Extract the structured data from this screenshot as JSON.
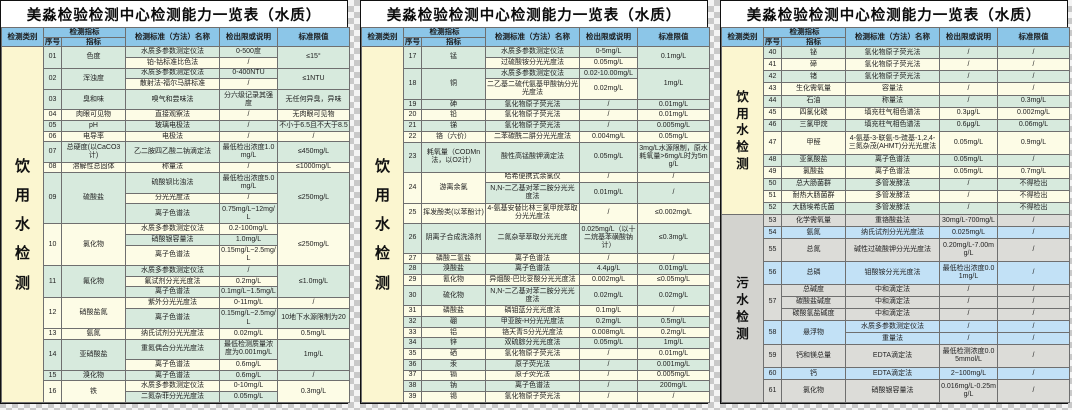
{
  "title": "美淼检验检测中心检测能力一览表（水质）",
  "header": {
    "category": "检测类别",
    "indicator_group": "检测指标",
    "seq": "序号",
    "indicator": "指标",
    "method": "检测标准（方法）名称",
    "detection": "检出限或说明",
    "limit": "标准限值"
  },
  "colors": {
    "header_bg": "#8cc6e8",
    "drink_row_a": "#d7eadd",
    "drink_row_b": "#fdfce6",
    "drink_category_bg": "#fbf6d0",
    "sewage_row_a": "#dcdcd8",
    "sewage_row_b": "#c2e1f6",
    "sewage_category_bg": "#d3d3cf",
    "grid_line": "#6f6f6f"
  },
  "panels": [
    {
      "sections": [
        {
          "category": "饮用水检测",
          "palette": "drink",
          "rows": [
            {
              "seq": "01",
              "ind": "色度",
              "limit": "≤15°",
              "lines": [
                {
                  "m": "水质多参数测定仪法",
                  "d": "0-500度"
                },
                {
                  "m": "铂-钴标准比色法",
                  "d": "/"
                }
              ]
            },
            {
              "seq": "02",
              "ind": "浑浊度",
              "limit": "≤1NTU",
              "lines": [
                {
                  "m": "水质多参数测定仪法",
                  "d": "0-400NTU"
                },
                {
                  "m": "散射法-福尔马肼标准",
                  "d": "/"
                }
              ]
            },
            {
              "seq": "03",
              "ind": "臭和味",
              "limit": "无任何异臭，异味",
              "lines": [
                {
                  "m": "嗅气和尝味法",
                  "d": "分六级记录其强度"
                }
              ]
            },
            {
              "seq": "04",
              "ind": "肉眼可见物",
              "limit": "无肉眼可见物",
              "lines": [
                {
                  "m": "直接观察法",
                  "d": "/"
                }
              ]
            },
            {
              "seq": "05",
              "ind": "pH",
              "limit": "不小于6.5且不大于8.5",
              "lines": [
                {
                  "m": "玻璃电极法",
                  "d": "/"
                }
              ]
            },
            {
              "seq": "06",
              "ind": "电导率",
              "limit": "/",
              "lines": [
                {
                  "m": "电极法",
                  "d": "/"
                }
              ]
            },
            {
              "seq": "07",
              "ind": "总硬度(以CaCO3计)",
              "limit": "≤450mg/L",
              "lines": [
                {
                  "m": "乙二胺四乙酸二钠滴定法",
                  "d": "最低检出浓度1.0mg/L"
                }
              ]
            },
            {
              "seq": "08",
              "ind": "溶解性总固体",
              "limit": "≤1000mg/L",
              "lines": [
                {
                  "m": "称量法",
                  "d": "/"
                }
              ]
            },
            {
              "seq": "09",
              "ind": "硫酸盐",
              "limit": "≤250mg/L",
              "lines": [
                {
                  "m": "硫酸钡比浊法",
                  "d": "最低检出浓度5.0mg/L"
                },
                {
                  "m": "分光光度法",
                  "d": "/"
                },
                {
                  "m": "离子色谱法",
                  "d": "0.75mg/L~12mg/L"
                }
              ]
            },
            {
              "seq": "10",
              "ind": "氯化物",
              "limit": "≤250mg/L",
              "lines": [
                {
                  "m": "水质多参数测定仪法",
                  "d": "0.2-100mg/L"
                },
                {
                  "m": "硝酸银容量法",
                  "d": "1.0mg/L"
                },
                {
                  "m": "离子色谱法",
                  "d": "0.15mg/L~2.5mg/L"
                }
              ]
            },
            {
              "seq": "11",
              "ind": "氟化物",
              "limit": "≤1.0mg/L",
              "lines": [
                {
                  "m": "水质多参数测定仪法",
                  "d": "/"
                },
                {
                  "m": "氟试剂分光光度法",
                  "d": "0.2mg/L"
                },
                {
                  "m": "离子色谱法",
                  "d": "0.1mg/L~1.5mg/L"
                }
              ]
            },
            {
              "seq": "12",
              "ind": "硝酸盐氮",
              "lines": [
                {
                  "m": "紫外分光光度法",
                  "d": "0-11mg/L",
                  "l": "/"
                },
                {
                  "m": "离子色谱法",
                  "d": "0.15mg/L~2.5mg/L",
                  "l": "10地下水源限制为20"
                }
              ]
            },
            {
              "seq": "13",
              "ind": "氨氮",
              "limit": "0.5mg/L",
              "lines": [
                {
                  "m": "纳氏试剂分光光度法",
                  "d": "0.02mg/L"
                }
              ]
            },
            {
              "seq": "14",
              "ind": "亚硝酸盐",
              "limit": "1mg/L",
              "lines": [
                {
                  "m": "重氮偶合分光光度法",
                  "d": "最低检测质量浓度为0.001mg/L"
                },
                {
                  "m": "离子色谱法",
                  "d": "0.6mg/L"
                }
              ]
            },
            {
              "seq": "15",
              "ind": "溴化物",
              "limit": "/",
              "lines": [
                {
                  "m": "离子色谱法",
                  "d": "0.6mg/L"
                }
              ]
            },
            {
              "seq": "16",
              "ind": "铁",
              "limit": "0.3mg/L",
              "lines": [
                {
                  "m": "水质多参数测定仪法",
                  "d": "0-10mg/L"
                },
                {
                  "m": "二氮杂菲分光光度法",
                  "d": "0.05mg/L"
                }
              ]
            }
          ]
        }
      ]
    },
    {
      "sections": [
        {
          "category": "饮用水检测",
          "palette": "drink",
          "rows": [
            {
              "seq": "17",
              "ind": "锰",
              "limit": "0.1mg/L",
              "lines": [
                {
                  "m": "水质多参数测定仪法",
                  "d": "0-5mg/L"
                },
                {
                  "m": "过硫酸铵分光光度法",
                  "d": "0.05mg/L"
                }
              ]
            },
            {
              "seq": "18",
              "ind": "铜",
              "limit": "1mg/L",
              "lines": [
                {
                  "m": "水质多参数测定仪法",
                  "d": "0.02-10.00mg/L"
                },
                {
                  "m": "二乙基二硫代氨基甲酸钠分光光度法",
                  "d": "0.02mg/L"
                }
              ]
            },
            {
              "seq": "19",
              "ind": "砷",
              "limit": "0.01mg/L",
              "lines": [
                {
                  "m": "氢化物原子荧光法",
                  "d": "/"
                }
              ]
            },
            {
              "seq": "20",
              "ind": "铅",
              "limit": "0.01mg/L",
              "lines": [
                {
                  "m": "氢化物原子荧光法",
                  "d": "/"
                }
              ]
            },
            {
              "seq": "21",
              "ind": "锑",
              "limit": "0.005mg/L",
              "lines": [
                {
                  "m": "氢化物原子荧光法",
                  "d": "/"
                }
              ]
            },
            {
              "seq": "22",
              "ind": "铬（六价）",
              "limit": "0.05mg/L",
              "lines": [
                {
                  "m": "二苯碳酰二肼分光光度法",
                  "d": "0.004mg/L"
                }
              ]
            },
            {
              "seq": "23",
              "ind": "耗氧量（CODMn法，以O2计）",
              "limit": "3mg/L水源限制，原水耗氧量>6mg/L时为5mg/L",
              "lines": [
                {
                  "m": "酸性高锰酸钾滴定法",
                  "d": "0.05mg/L"
                }
              ]
            },
            {
              "seq": "24",
              "ind": "游离余氯",
              "lines": [
                {
                  "m": "哈希便携式余氯仪",
                  "d": "/",
                  "l": "/"
                },
                {
                  "m": "N,N-二乙基对苯二胺分光光度法",
                  "d": "0.01mg/L",
                  "l": "/"
                }
              ]
            },
            {
              "seq": "25",
              "ind": "挥发酚类(以苯酚计)",
              "limit": "≤0.002mg/L",
              "lines": [
                {
                  "m": "4-氨基安替比林三氯甲烷萃取分光光度法",
                  "d": "/"
                }
              ]
            },
            {
              "seq": "26",
              "ind": "阴离子合成洗涤剂",
              "limit": "≤0.3mg/L",
              "lines": [
                {
                  "m": "二氮杂菲萃取分光光度",
                  "d": "0.025mg/L（以十二烷基苯磺酸钠计）"
                }
              ]
            },
            {
              "seq": "27",
              "ind": "磷酸二氢盐",
              "limit": "/",
              "lines": [
                {
                  "m": "离子色谱法",
                  "d": "/"
                }
              ]
            },
            {
              "seq": "28",
              "ind": "溴酸盐",
              "limit": "0.01mg/L",
              "lines": [
                {
                  "m": "离子色谱法",
                  "d": "4.4μg/L"
                }
              ]
            },
            {
              "seq": "29",
              "ind": "氰化物",
              "limit": "≤0.05mg/L",
              "lines": [
                {
                  "m": "异烟酸-巴比妥酸分光光度法",
                  "d": "0.002mg/L"
                }
              ]
            },
            {
              "seq": "30",
              "ind": "硫化物",
              "limit": "0.02mg/L",
              "lines": [
                {
                  "m": "N,N-二乙基对苯二胺分光光度法",
                  "d": "0.02mg/L"
                }
              ]
            },
            {
              "seq": "31",
              "ind": "磷酸盐",
              "limit": "/",
              "lines": [
                {
                  "m": "磷钼蓝分光光度法",
                  "d": "0.1mg/L"
                }
              ]
            },
            {
              "seq": "32",
              "ind": "硼",
              "limit": "0.5mg/L",
              "lines": [
                {
                  "m": "甲亚胺-H分光光度法",
                  "d": "0.2mg/L"
                }
              ]
            },
            {
              "seq": "33",
              "ind": "铝",
              "limit": "0.2mg/L",
              "lines": [
                {
                  "m": "铬天青S分光光度法",
                  "d": "0.008mg/L"
                }
              ]
            },
            {
              "seq": "34",
              "ind": "锌",
              "limit": "1mg/L",
              "lines": [
                {
                  "m": "双硫腙分光光度法",
                  "d": "0.05mg/L"
                }
              ]
            },
            {
              "seq": "35",
              "ind": "硒",
              "limit": "0.01mg/L",
              "lines": [
                {
                  "m": "氢化物原子荧光法",
                  "d": "/"
                }
              ]
            },
            {
              "seq": "36",
              "ind": "汞",
              "limit": "0.001mg/L",
              "lines": [
                {
                  "m": "原子荧光法",
                  "d": "/"
                }
              ]
            },
            {
              "seq": "37",
              "ind": "镉",
              "limit": "0.005mg/L",
              "lines": [
                {
                  "m": "原子荧光法",
                  "d": "/"
                }
              ]
            },
            {
              "seq": "38",
              "ind": "钠",
              "limit": "200mg/L",
              "lines": [
                {
                  "m": "离子色谱法",
                  "d": "/"
                }
              ]
            },
            {
              "seq": "39",
              "ind": "锡",
              "limit": "/",
              "lines": [
                {
                  "m": "氢化物原子荧光法",
                  "d": "/"
                }
              ]
            }
          ]
        }
      ]
    },
    {
      "sections": [
        {
          "category": "饮用水检测",
          "palette": "drink",
          "rows": [
            {
              "seq": "40",
              "ind": "铋",
              "limit": "/",
              "lines": [
                {
                  "m": "氢化物原子荧光法",
                  "d": "/"
                }
              ]
            },
            {
              "seq": "41",
              "ind": "碲",
              "limit": "/",
              "lines": [
                {
                  "m": "氢化物原子荧光法",
                  "d": "/"
                }
              ]
            },
            {
              "seq": "42",
              "ind": "锗",
              "limit": "/",
              "lines": [
                {
                  "m": "氢化物原子荧光法",
                  "d": "/"
                }
              ]
            },
            {
              "seq": "43",
              "ind": "生化需氧量",
              "limit": "/",
              "lines": [
                {
                  "m": "容量法",
                  "d": "/"
                }
              ]
            },
            {
              "seq": "44",
              "ind": "石油",
              "limit": "0.3mg/L",
              "lines": [
                {
                  "m": "称量法",
                  "d": "/"
                }
              ]
            },
            {
              "seq": "45",
              "ind": "四氯化碳",
              "limit": "0.002mg/L",
              "lines": [
                {
                  "m": "填充柱气相色谱法",
                  "d": "0.3μg/L"
                }
              ]
            },
            {
              "seq": "46",
              "ind": "三氯甲烷",
              "limit": "0.06mg/L",
              "lines": [
                {
                  "m": "填充柱气相色谱法",
                  "d": "0.6μg/L"
                }
              ]
            },
            {
              "seq": "47",
              "ind": "甲醛",
              "limit": "0.9mg/L",
              "lines": [
                {
                  "m": "4-氨基-3-联氨-5-巯基-1,2,4-三氮杂茂(AHMT)分光光度法",
                  "d": "0.05mg/L"
                }
              ]
            },
            {
              "seq": "48",
              "ind": "亚氯酸盐",
              "limit": "/",
              "lines": [
                {
                  "m": "离子色谱法",
                  "d": "0.05mg/L"
                }
              ]
            },
            {
              "seq": "49",
              "ind": "氯酸盐",
              "limit": "0.7mg/L",
              "lines": [
                {
                  "m": "离子色谱法",
                  "d": "0.05mg/L"
                }
              ]
            },
            {
              "seq": "50",
              "ind": "总大肠菌群",
              "limit": "不得检出",
              "lines": [
                {
                  "m": "多管发酵法",
                  "d": "/"
                }
              ]
            },
            {
              "seq": "51",
              "ind": "耐热大肠菌群",
              "limit": "不得检出",
              "lines": [
                {
                  "m": "多管发酵法",
                  "d": "/"
                }
              ]
            },
            {
              "seq": "52",
              "ind": "大肠埃希氏菌",
              "limit": "不得检出",
              "lines": [
                {
                  "m": "多管发酵法",
                  "d": "/"
                }
              ]
            }
          ]
        },
        {
          "category": "污水检测",
          "palette": "sewage",
          "rows": [
            {
              "seq": "53",
              "ind": "化学需氧量",
              "limit": "/",
              "lines": [
                {
                  "m": "重铬酸盐法",
                  "d": "30mg/L-700mg/L"
                }
              ]
            },
            {
              "seq": "54",
              "ind": "氨氮",
              "limit": "/",
              "lines": [
                {
                  "m": "纳氏试剂分光光度法",
                  "d": "0.025mg/L"
                }
              ]
            },
            {
              "seq": "55",
              "ind": "总氮",
              "limit": "/",
              "lines": [
                {
                  "m": "碱性过硫酸钾分光光度法",
                  "d": "0.20mg/L-7.00mg/L"
                }
              ]
            },
            {
              "seq": "56",
              "ind": "总磷",
              "limit": "/",
              "lines": [
                {
                  "m": "钼酸铵分光光度法",
                  "d": "最低检出浓度0.01mg/L"
                }
              ]
            },
            {
              "seq": "57",
              "lines": [
                {
                  "i": "总碱度",
                  "m": "中和滴定法",
                  "d": "/",
                  "l": "/"
                },
                {
                  "i": "碳酸盐碱度",
                  "m": "中和滴定法",
                  "d": "/",
                  "l": "/"
                },
                {
                  "i": "碳酸氢盐碱度",
                  "m": "中和滴定法",
                  "d": "/",
                  "l": "/"
                }
              ]
            },
            {
              "seq": "58",
              "ind": "悬浮物",
              "lines": [
                {
                  "m": "水质多参数测定仪法",
                  "d": "/",
                  "l": "/"
                },
                {
                  "m": "重量法",
                  "d": "/",
                  "l": "/"
                }
              ]
            },
            {
              "seq": "59",
              "ind": "钙和镁总量",
              "limit": "/",
              "lines": [
                {
                  "m": "EDTA滴定法",
                  "d": "最低检测浓度0.05mmol/L"
                }
              ]
            },
            {
              "seq": "60",
              "ind": "钙",
              "limit": "/",
              "lines": [
                {
                  "m": "EDTA滴定法",
                  "d": "2~100mg/L"
                }
              ]
            },
            {
              "seq": "61",
              "ind": "氯化物",
              "limit": "/",
              "lines": [
                {
                  "m": "硝酸银容量法",
                  "d": "0.016mg/L-0.25mg/L"
                }
              ]
            }
          ]
        }
      ]
    }
  ]
}
